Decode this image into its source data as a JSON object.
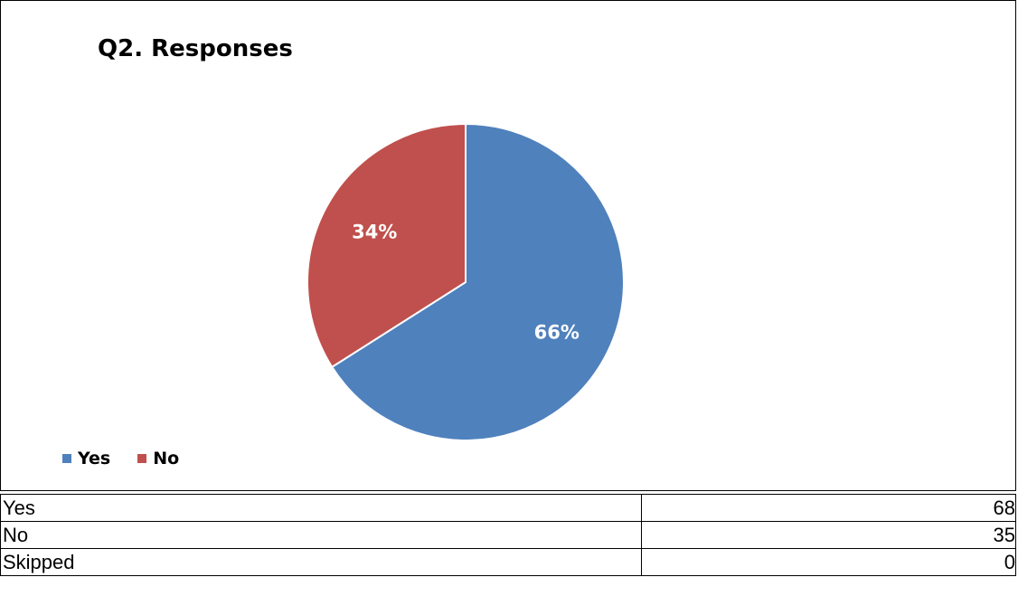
{
  "chart_data": {
    "type": "pie",
    "title": "Q2. Responses",
    "slices": [
      {
        "label": "Yes",
        "percent": 66,
        "value_label": "66%",
        "color": "#4f81bd"
      },
      {
        "label": "No",
        "percent": 34,
        "value_label": "34%",
        "color": "#c0504d"
      }
    ],
    "legend_position": "bottom-left"
  },
  "table": {
    "rows": [
      {
        "label": "Yes",
        "value": "68"
      },
      {
        "label": "No",
        "value": "35"
      },
      {
        "label": "Skipped",
        "value": "0"
      }
    ]
  }
}
